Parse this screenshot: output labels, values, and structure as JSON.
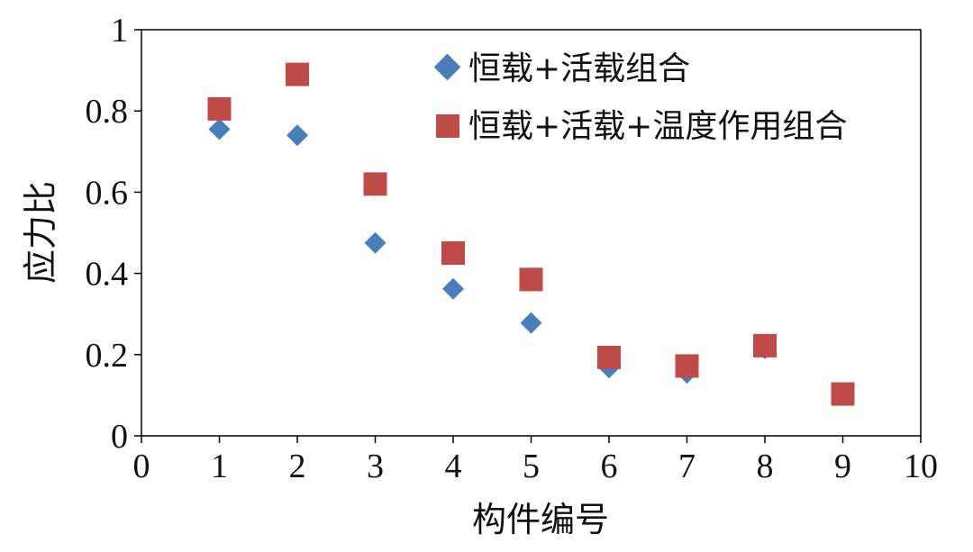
{
  "chart_data": {
    "type": "scatter",
    "xlabel": "构件编号",
    "ylabel": "应力比",
    "xlim": [
      0,
      10
    ],
    "ylim": [
      0,
      1
    ],
    "x_ticks": [
      0,
      1,
      2,
      3,
      4,
      5,
      6,
      7,
      8,
      9,
      10
    ],
    "y_ticks": [
      0,
      0.2,
      0.4,
      0.6,
      0.8,
      1
    ],
    "y_tick_labels": [
      "0",
      "0.2",
      "0.4",
      "0.6",
      "0.8",
      "1"
    ],
    "grid": false,
    "legend_position": "top-right",
    "series": [
      {
        "name": "恒载+活载组合",
        "marker": "diamond",
        "color": "#4a7ebb",
        "x": [
          1,
          2,
          3,
          4,
          5,
          6,
          7,
          8,
          9
        ],
        "y": [
          0.755,
          0.74,
          0.475,
          0.362,
          0.278,
          0.168,
          0.155,
          0.215,
          0.1
        ]
      },
      {
        "name": "恒载+活载+温度作用组合",
        "marker": "square",
        "color": "#be4b48",
        "x": [
          1,
          2,
          3,
          4,
          5,
          6,
          7,
          8,
          9
        ],
        "y": [
          0.805,
          0.89,
          0.62,
          0.45,
          0.385,
          0.193,
          0.172,
          0.222,
          0.103
        ]
      }
    ]
  }
}
